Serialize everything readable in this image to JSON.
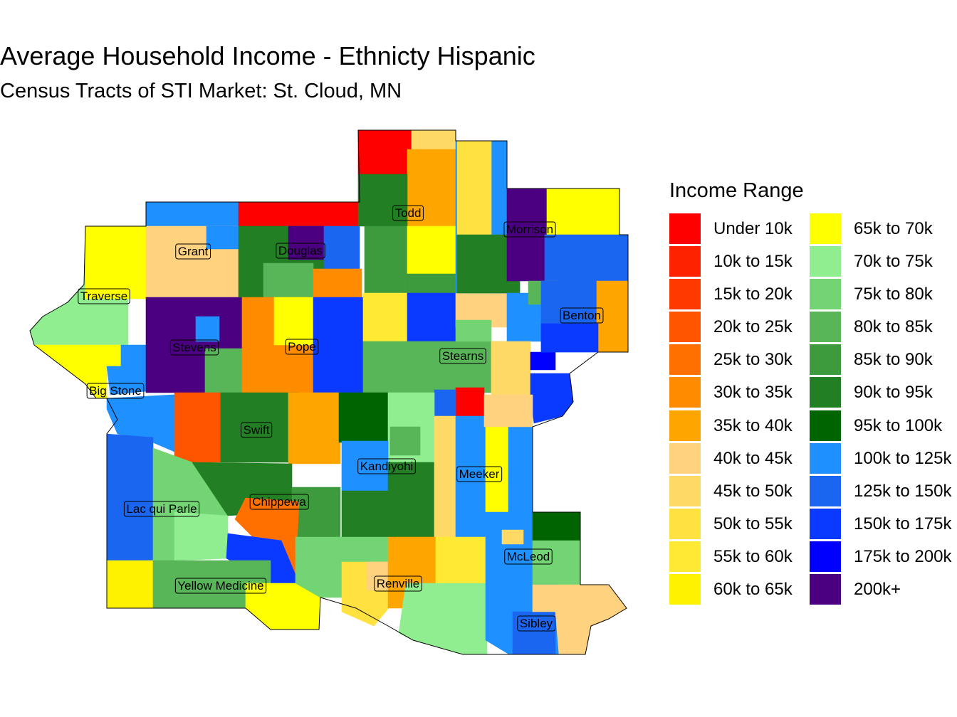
{
  "title": "Average Household Income - Ethnicty Hispanic",
  "subtitle": "Census Tracts of STI Market: St. Cloud, MN",
  "legend": {
    "title": "Income Range",
    "items": [
      {
        "label": "Under 10k",
        "color": "#FF0000"
      },
      {
        "label": "10k to 15k",
        "color": "#FF2200"
      },
      {
        "label": "15k to 20k",
        "color": "#FF3A00"
      },
      {
        "label": "20k to 25k",
        "color": "#FF5500"
      },
      {
        "label": "25k to 30k",
        "color": "#FF7000"
      },
      {
        "label": "30k to 35k",
        "color": "#FF8C00"
      },
      {
        "label": "35k to 40k",
        "color": "#FFA500"
      },
      {
        "label": "40k to 45k",
        "color": "#FFD27F"
      },
      {
        "label": "45k to 50k",
        "color": "#FFD966"
      },
      {
        "label": "50k to 55k",
        "color": "#FFE23F"
      },
      {
        "label": "55k to 60k",
        "color": "#FFE933"
      },
      {
        "label": "60k to 65k",
        "color": "#FFF200"
      },
      {
        "label": "65k to 70k",
        "color": "#FFFF00"
      },
      {
        "label": "70k to 75k",
        "color": "#90EE90"
      },
      {
        "label": "75k to 80k",
        "color": "#72D472"
      },
      {
        "label": "80k to 85k",
        "color": "#58B558"
      },
      {
        "label": "85k to 90k",
        "color": "#3D9A3D"
      },
      {
        "label": "90k to 95k",
        "color": "#237F23"
      },
      {
        "label": "95k to 100k",
        "color": "#006400"
      },
      {
        "label": "100k to 125k",
        "color": "#1E90FF"
      },
      {
        "label": "125k to 150k",
        "color": "#1A66F0"
      },
      {
        "label": "150k to 175k",
        "color": "#0A3AFF"
      },
      {
        "label": "175k to 200k",
        "color": "#0000FF"
      },
      {
        "label": "200k+",
        "color": "#4B0082"
      }
    ]
  },
  "counties": [
    "Todd",
    "Morrison",
    "Grant",
    "Douglas",
    "Traverse",
    "Benton",
    "Stevens",
    "Pope",
    "Stearns",
    "Big Stone",
    "Swift",
    "Kandiyohi",
    "Meeker",
    "Chippewa",
    "Lac qui Parle",
    "McLeod",
    "Yellow Medicine",
    "Renville",
    "Sibley"
  ]
}
